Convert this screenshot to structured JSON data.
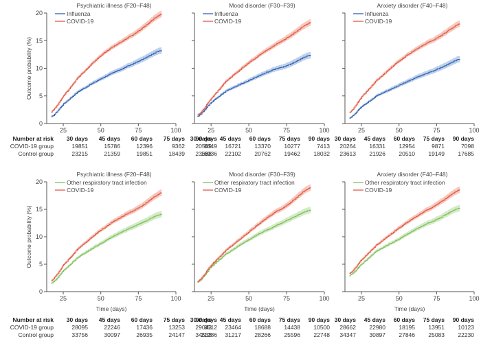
{
  "colors": {
    "covid": "#e05a45",
    "covid_band": "#f4b7a9",
    "influenza": "#2f63b0",
    "influenza_band": "#a9c0e6",
    "other_resp": "#7fbf5a",
    "other_resp_band": "#c7e4b5",
    "axis": "#555555"
  },
  "chart_data": [
    {
      "type": "line",
      "title": "Psychiatric illness (F20–F48)",
      "xlabel": "",
      "ylabel": "Outcome probability (%)",
      "xlim": [
        14,
        100
      ],
      "ylim": [
        0,
        20
      ],
      "xticks": [
        25,
        50,
        75,
        100
      ],
      "yticks": [
        0,
        5,
        10,
        15,
        20
      ],
      "legend": "top-left",
      "x": [
        17,
        25,
        35,
        50,
        65,
        75,
        91
      ],
      "series": [
        {
          "name": "Influenza",
          "color_key": "influenza",
          "values": [
            1.2,
            3.5,
            5.8,
            8.1,
            10.0,
            11.3,
            13.3
          ]
        },
        {
          "name": "COVID-19",
          "color_key": "covid",
          "values": [
            2.1,
            5.0,
            8.4,
            12.3,
            15.0,
            16.8,
            19.9
          ]
        }
      ],
      "risk_table": {
        "header": "Number at risk",
        "days": [
          "30 days",
          "45 days",
          "60 days",
          "75 days",
          "90 days"
        ],
        "rows": [
          {
            "label": "COVID-19 group",
            "values": [
              "19851",
              "15786",
              "12396",
              "9362",
              "6649"
            ]
          },
          {
            "label": "Control group",
            "values": [
              "23215",
              "21359",
              "19851",
              "18439",
              "16936"
            ]
          }
        ]
      }
    },
    {
      "type": "line",
      "title": "Mood disorder (F30–F39)",
      "xlabel": "",
      "ylabel": "",
      "xlim": [
        14,
        100
      ],
      "ylim": [
        0,
        20
      ],
      "xticks": [
        25,
        50,
        75,
        100
      ],
      "yticks": [
        0,
        5,
        10,
        15,
        20
      ],
      "legend": "top-left",
      "x": [
        16,
        25,
        35,
        50,
        65,
        75,
        91
      ],
      "series": [
        {
          "name": "Influenza",
          "color_key": "influenza",
          "values": [
            1.3,
            3.8,
            5.9,
            7.8,
            9.6,
            10.5,
            12.4
          ]
        },
        {
          "name": "COVID-19",
          "color_key": "covid",
          "values": [
            1.5,
            4.5,
            7.7,
            11.0,
            13.8,
            15.5,
            18.3
          ]
        }
      ],
      "risk_table": {
        "days": [
          "30 days",
          "45 days",
          "60 days",
          "75 days",
          "90 days"
        ],
        "rows": [
          {
            "label": "COVID-19 group",
            "values": [
              "20569",
              "16721",
              "13370",
              "10277",
              "7413"
            ]
          },
          {
            "label": "Control group",
            "values": [
              "23688",
              "22102",
              "20762",
              "19462",
              "18032"
            ]
          }
        ]
      }
    },
    {
      "type": "line",
      "title": "Anxiety disorder (F40–F48)",
      "xlabel": "",
      "ylabel": "",
      "xlim": [
        14,
        100
      ],
      "ylim": [
        0,
        20
      ],
      "xticks": [
        25,
        50,
        75,
        100
      ],
      "yticks": [
        0,
        5,
        10,
        15,
        20
      ],
      "legend": "top-left",
      "x": [
        17,
        25,
        35,
        50,
        65,
        75,
        91
      ],
      "series": [
        {
          "name": "Influenza",
          "color_key": "influenza",
          "values": [
            1.0,
            3.0,
            5.0,
            6.9,
            8.7,
            9.8,
            11.7
          ]
        },
        {
          "name": "COVID-19",
          "color_key": "covid",
          "values": [
            2.0,
            4.8,
            7.8,
            11.3,
            14.0,
            15.5,
            18.1
          ]
        }
      ],
      "risk_table": {
        "days": [
          "30 days",
          "45 days",
          "60 days",
          "75 days",
          "90 days"
        ],
        "rows": [
          {
            "label": "COVID-19 group",
            "values": [
              "20264",
              "16331",
              "12954",
              "9871",
              "7098"
            ]
          },
          {
            "label": "Control group",
            "values": [
              "23613",
              "21926",
              "20510",
              "19149",
              "17685"
            ]
          }
        ]
      }
    },
    {
      "type": "line",
      "title": "Psychiatric illness (F20–F48)",
      "xlabel": "Time (days)",
      "ylabel": "Outcome probability (%)",
      "xlim": [
        14,
        100
      ],
      "ylim": [
        0,
        20
      ],
      "xticks": [
        25,
        50,
        75,
        100
      ],
      "yticks": [
        0,
        5,
        10,
        15,
        20
      ],
      "legend": "top-left",
      "x": [
        17,
        25,
        35,
        50,
        65,
        75,
        91
      ],
      "series": [
        {
          "name": "Other respiratory tract infection",
          "color_key": "other_resp",
          "values": [
            1.5,
            3.8,
            6.3,
            8.8,
            11.0,
            12.3,
            14.2
          ]
        },
        {
          "name": "COVID-19",
          "color_key": "covid",
          "values": [
            2.0,
            4.8,
            7.9,
            11.2,
            13.8,
            15.3,
            18.1
          ]
        }
      ],
      "risk_table": {
        "header": "Number at risk",
        "days": [
          "30 days",
          "45 days",
          "60 days",
          "75 days",
          "90 days"
        ],
        "rows": [
          {
            "label": "COVID-19 group",
            "values": [
              "28095",
              "22246",
              "17436",
              "13253",
              "9512"
            ]
          },
          {
            "label": "Control group",
            "values": [
              "33756",
              "30097",
              "26935",
              "24147",
              "21286"
            ]
          }
        ]
      }
    },
    {
      "type": "line",
      "title": "Mood disorder (F30–F39)",
      "xlabel": "Time (days)",
      "ylabel": "",
      "xlim": [
        14,
        100
      ],
      "ylim": [
        0,
        20
      ],
      "xticks": [
        25,
        50,
        75,
        100
      ],
      "yticks": [
        0,
        5,
        10,
        15,
        20
      ],
      "legend": "top-left",
      "x": [
        16,
        25,
        35,
        50,
        65,
        75,
        91
      ],
      "series": [
        {
          "name": "Other respiratory tract infection",
          "color_key": "other_resp",
          "values": [
            1.7,
            4.5,
            6.9,
            9.5,
            11.6,
            13.0,
            14.9
          ]
        },
        {
          "name": "COVID-19",
          "color_key": "covid",
          "values": [
            1.8,
            4.8,
            7.6,
            10.9,
            14.0,
            15.8,
            19.0
          ]
        }
      ],
      "risk_table": {
        "days": [
          "30 days",
          "45 days",
          "60 days",
          "75 days",
          "90 days"
        ],
        "rows": [
          {
            "label": "COVID-19 group",
            "values": [
              "29043",
              "23464",
              "18688",
              "14438",
              "10500"
            ]
          },
          {
            "label": "Control group",
            "values": [
              "34538",
              "31217",
              "28266",
              "25596",
              "22748"
            ]
          }
        ]
      }
    },
    {
      "type": "line",
      "title": "Anxiety disorder (F40–F48)",
      "xlabel": "Time (days)",
      "ylabel": "",
      "xlim": [
        14,
        100
      ],
      "ylim": [
        0,
        20
      ],
      "xticks": [
        25,
        50,
        75,
        100
      ],
      "yticks": [
        0,
        5,
        10,
        15,
        20
      ],
      "legend": "top-left",
      "x": [
        17,
        25,
        35,
        50,
        65,
        75,
        91
      ],
      "series": [
        {
          "name": "Other respiratory tract infection",
          "color_key": "other_resp",
          "values": [
            2.9,
            5.0,
            7.4,
            9.6,
            11.9,
            13.2,
            15.3
          ]
        },
        {
          "name": "COVID-19",
          "color_key": "covid",
          "values": [
            3.3,
            5.8,
            8.5,
            11.6,
            14.3,
            15.9,
            18.6
          ]
        }
      ],
      "risk_table": {
        "days": [
          "30 days",
          "45 days",
          "60 days",
          "75 days",
          "90 days"
        ],
        "rows": [
          {
            "label": "COVID-19 group",
            "values": [
              "28662",
              "22980",
              "18195",
              "13951",
              "10123"
            ]
          },
          {
            "label": "Control group",
            "values": [
              "34347",
              "30897",
              "27846",
              "25083",
              "22230"
            ]
          }
        ]
      }
    }
  ]
}
